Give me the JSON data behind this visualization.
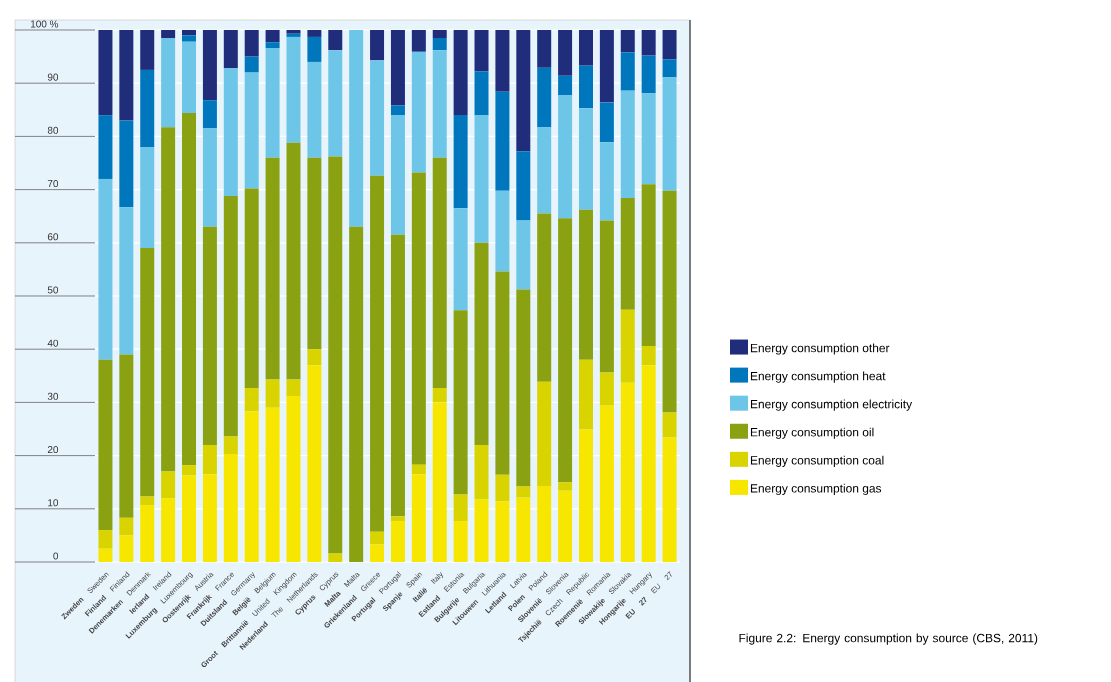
{
  "chart_data": {
    "type": "bar",
    "stacked": true,
    "grid": "y",
    "legend": "right",
    "categories": [
      "**Zweden** Sweden",
      "**Finland** Finland",
      "**Denemarken** Denmark",
      "**Ierland** Ireland",
      "**Luxemburg** Luxembourg",
      "**Oostenrijk** Austria",
      "**Frankrijk** France",
      "**Duitsland** Germany",
      "**België** Belgium",
      "**Groot Brittannië** United Kingdom",
      "**Nederland** The Netherlands",
      "**Cyprus** Cyprus",
      "**Malta** Malta",
      "**Griekenland** Greece",
      "**Portugal** Portugal",
      "**Spanje** Spain",
      "**Italië** Italy",
      "**Estland** Estonia",
      "**Bulgarije** Bulgaria",
      "**Litouwen** Lithuania",
      "**Letland** Latvia",
      "**Polen** Poland",
      "**Slovenië** Slovenia",
      "**Tsjechië** Czech Republic",
      "**Roemenië** Romania",
      "**Slowakije** Slovakia",
      "**Hongarije** Hungary",
      "**EU 27** EU 27"
    ],
    "series": [
      {
        "name": "Energy consumption gas",
        "color": "#f7e600",
        "values": [
          2.5,
          5,
          10.7,
          12,
          16.3,
          16.5,
          20.3,
          28.3,
          29,
          31.2,
          37,
          0,
          0,
          3.3,
          7.7,
          16.5,
          30,
          7.7,
          11.8,
          11.4,
          12.1,
          14.3,
          13.4,
          24.9,
          29.4,
          33.7,
          37,
          23.4
        ]
      },
      {
        "name": "Energy consumption coal",
        "color": "#d9d300",
        "values": [
          3.5,
          3.3,
          1.6,
          5,
          1.9,
          5.5,
          3.3,
          4.4,
          5.3,
          3.1,
          3,
          1.6,
          0,
          2.4,
          0.9,
          1.8,
          2.7,
          5,
          10.2,
          5,
          2.1,
          19.6,
          1.6,
          13.1,
          6.2,
          13.7,
          3.6,
          4.7
        ]
      },
      {
        "name": "Energy consumption oil",
        "color": "#8aa112",
        "values": [
          32,
          30.7,
          46.7,
          64.7,
          66.2,
          41,
          45.2,
          37.5,
          41.7,
          44.5,
          36,
          74.6,
          63,
          66.9,
          52.9,
          54.9,
          43.3,
          34.6,
          38,
          38.2,
          37,
          31.6,
          49.6,
          28.2,
          28.6,
          21,
          30.4,
          41.7
        ]
      },
      {
        "name": "Energy consumption electricity",
        "color": "#6dc5e8",
        "values": [
          34,
          27.7,
          19,
          16.8,
          13.4,
          18.5,
          24,
          21.8,
          20.6,
          19.9,
          18,
          20,
          37,
          21.7,
          22.5,
          22.7,
          20.2,
          19.2,
          24,
          15.2,
          13,
          16.2,
          23.1,
          19.1,
          14.7,
          20.2,
          17.1,
          21.3
        ]
      },
      {
        "name": "Energy consumption heat",
        "color": "#0077bd",
        "values": [
          12,
          16.3,
          14.5,
          0,
          1.2,
          5.3,
          0,
          3,
          1.1,
          0.6,
          4.7,
          0,
          0,
          0,
          1.8,
          0,
          2.3,
          17.5,
          8.2,
          18.6,
          13,
          11.2,
          3.7,
          8,
          7.5,
          7.2,
          7.1,
          3.4
        ]
      },
      {
        "name": "Energy consumption other",
        "color": "#1f2d7b",
        "values": [
          16,
          17,
          7.5,
          1.5,
          1,
          13.2,
          7.2,
          5,
          2.3,
          0.7,
          1.3,
          3.8,
          0,
          5.7,
          14.2,
          4.1,
          1.5,
          16,
          7.8,
          11.6,
          22.8,
          7.1,
          8.6,
          6.7,
          13.6,
          4.2,
          4.8,
          5.5
        ]
      }
    ],
    "ylim": [
      0,
      100
    ],
    "yticks": [
      0,
      10,
      20,
      30,
      40,
      50,
      60,
      70,
      80,
      90,
      {
        "value": 100,
        "label": "100 %"
      }
    ],
    "annotations": [
      "Figure 2.2: Energy consumption by source (CBS, 2011)"
    ]
  }
}
